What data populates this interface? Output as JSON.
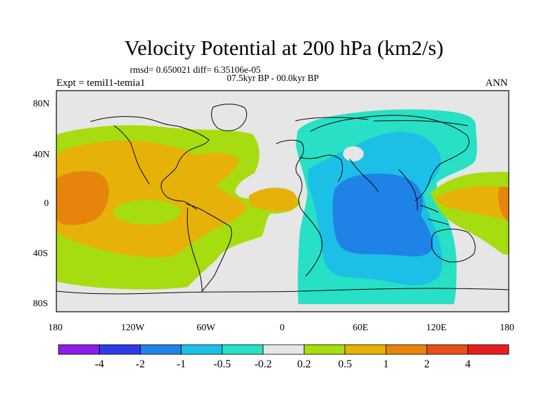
{
  "title": "Velocity Potential at 200 hPa (km2/s)",
  "stats_line": "rmsd= 0.650021 diff= 6.35106e-05",
  "period_line": "07.5kyr BP - 00.0kyr BP",
  "experiment_label": "Expt = temiI1-temia1",
  "season_label": "ANN",
  "axes": {
    "x_ticks": [
      "180",
      "120W",
      "60W",
      "0",
      "60E",
      "120E",
      "180"
    ],
    "y_ticks": [
      "80N",
      "40N",
      "0",
      "40S",
      "80S"
    ],
    "x_range_deg": [
      -180,
      180
    ],
    "y_range_deg": [
      -90,
      90
    ]
  },
  "colorbar": {
    "levels": [
      "-4",
      "-2",
      "-1",
      "-0.5",
      "-0.2",
      "0.2",
      "0.5",
      "1",
      "2",
      "4"
    ],
    "colors": [
      "#8a1ee6",
      "#2f3ce6",
      "#1f82e6",
      "#1cc0e6",
      "#28e0c6",
      "#e6e6e6",
      "#a6dc10",
      "#e6b20a",
      "#e6840c",
      "#e6501a",
      "#e61e1e"
    ]
  },
  "regions": {
    "pacific_zero_band": "#e6e6e6",
    "positive_weak": "#a6dc10",
    "positive_moderate": "#e6b20a",
    "positive_strong": "#e6840c",
    "negative_weak": "#28e0c6",
    "negative_moderate": "#1cc0e6",
    "negative_strong": "#1f82e6"
  }
}
